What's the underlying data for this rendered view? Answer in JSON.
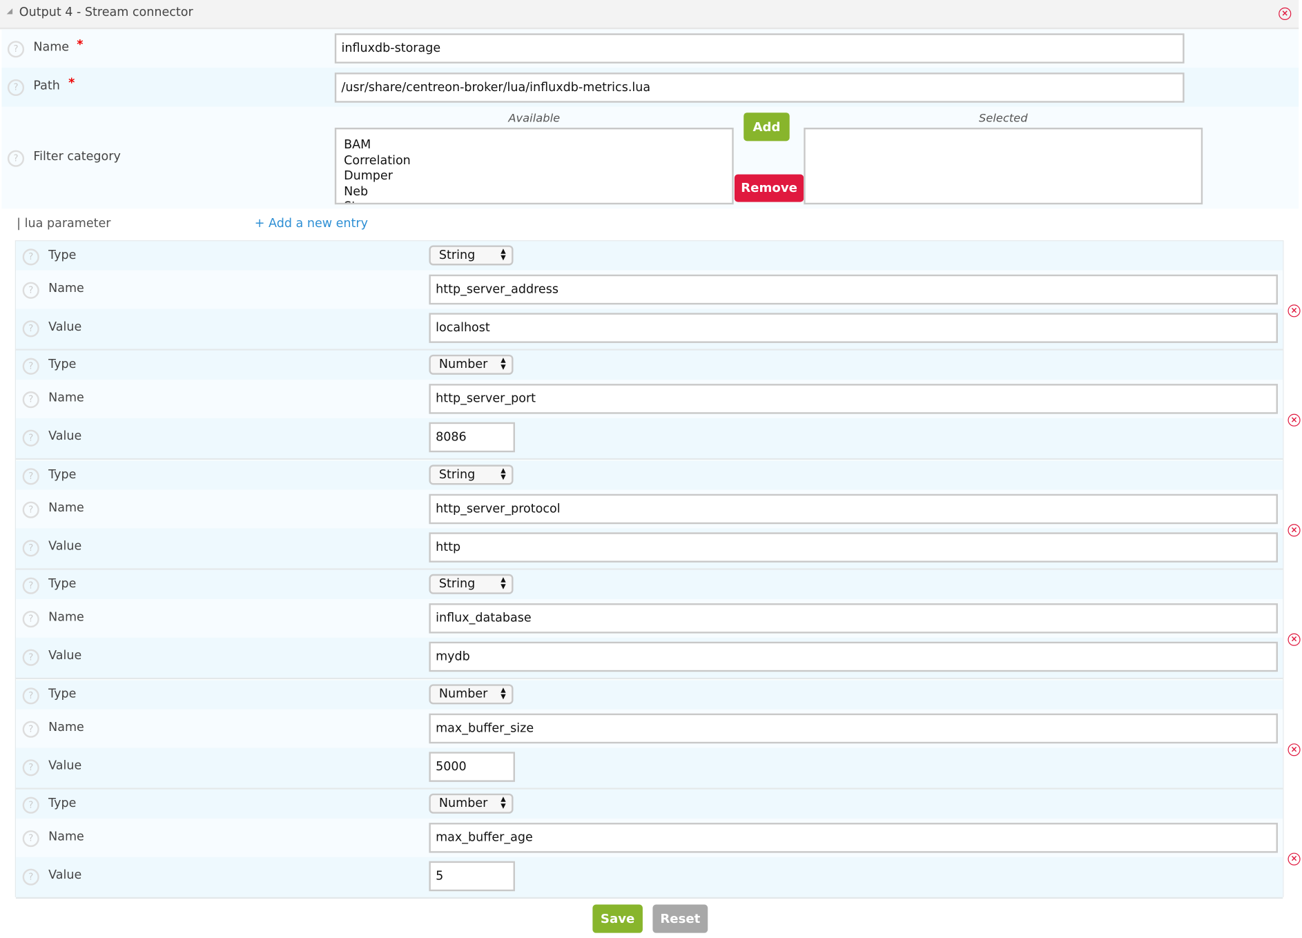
{
  "header": {
    "title": "Output 4 - Stream connector",
    "close_icon": "close-circle-icon"
  },
  "form": {
    "name": {
      "label": "Name",
      "required": "*",
      "value": "influxdb-storage"
    },
    "path": {
      "label": "Path",
      "required": "*",
      "value": "/usr/share/centreon-broker/lua/influxdb-metrics.lua"
    },
    "filter": {
      "label": "Filter category",
      "available_label": "Available",
      "selected_label": "Selected",
      "available": [
        "BAM",
        "Correlation",
        "Dumper",
        "Neb",
        "Storage"
      ],
      "selected": [],
      "add_label": "Add",
      "remove_label": "Remove"
    }
  },
  "lua": {
    "label": "| lua parameter",
    "add_entry": "+ Add a new entry",
    "type_label": "Type",
    "name_label": "Name",
    "value_label": "Value",
    "params": [
      {
        "type": "String",
        "name": "http_server_address",
        "value": "localhost"
      },
      {
        "type": "Number",
        "name": "http_server_port",
        "value": "8086"
      },
      {
        "type": "String",
        "name": "http_server_protocol",
        "value": "http"
      },
      {
        "type": "String",
        "name": "influx_database",
        "value": "mydb"
      },
      {
        "type": "Number",
        "name": "max_buffer_size",
        "value": "5000"
      },
      {
        "type": "Number",
        "name": "max_buffer_age",
        "value": "5"
      }
    ]
  },
  "actions": {
    "save": "Save",
    "reset": "Reset"
  },
  "colors": {
    "green": "#88b52c",
    "red": "#e0193f",
    "grey": "#a8a8a8",
    "link": "#2e8fd4",
    "row_a": "#f7fcff",
    "row_b": "#eef9fe"
  }
}
